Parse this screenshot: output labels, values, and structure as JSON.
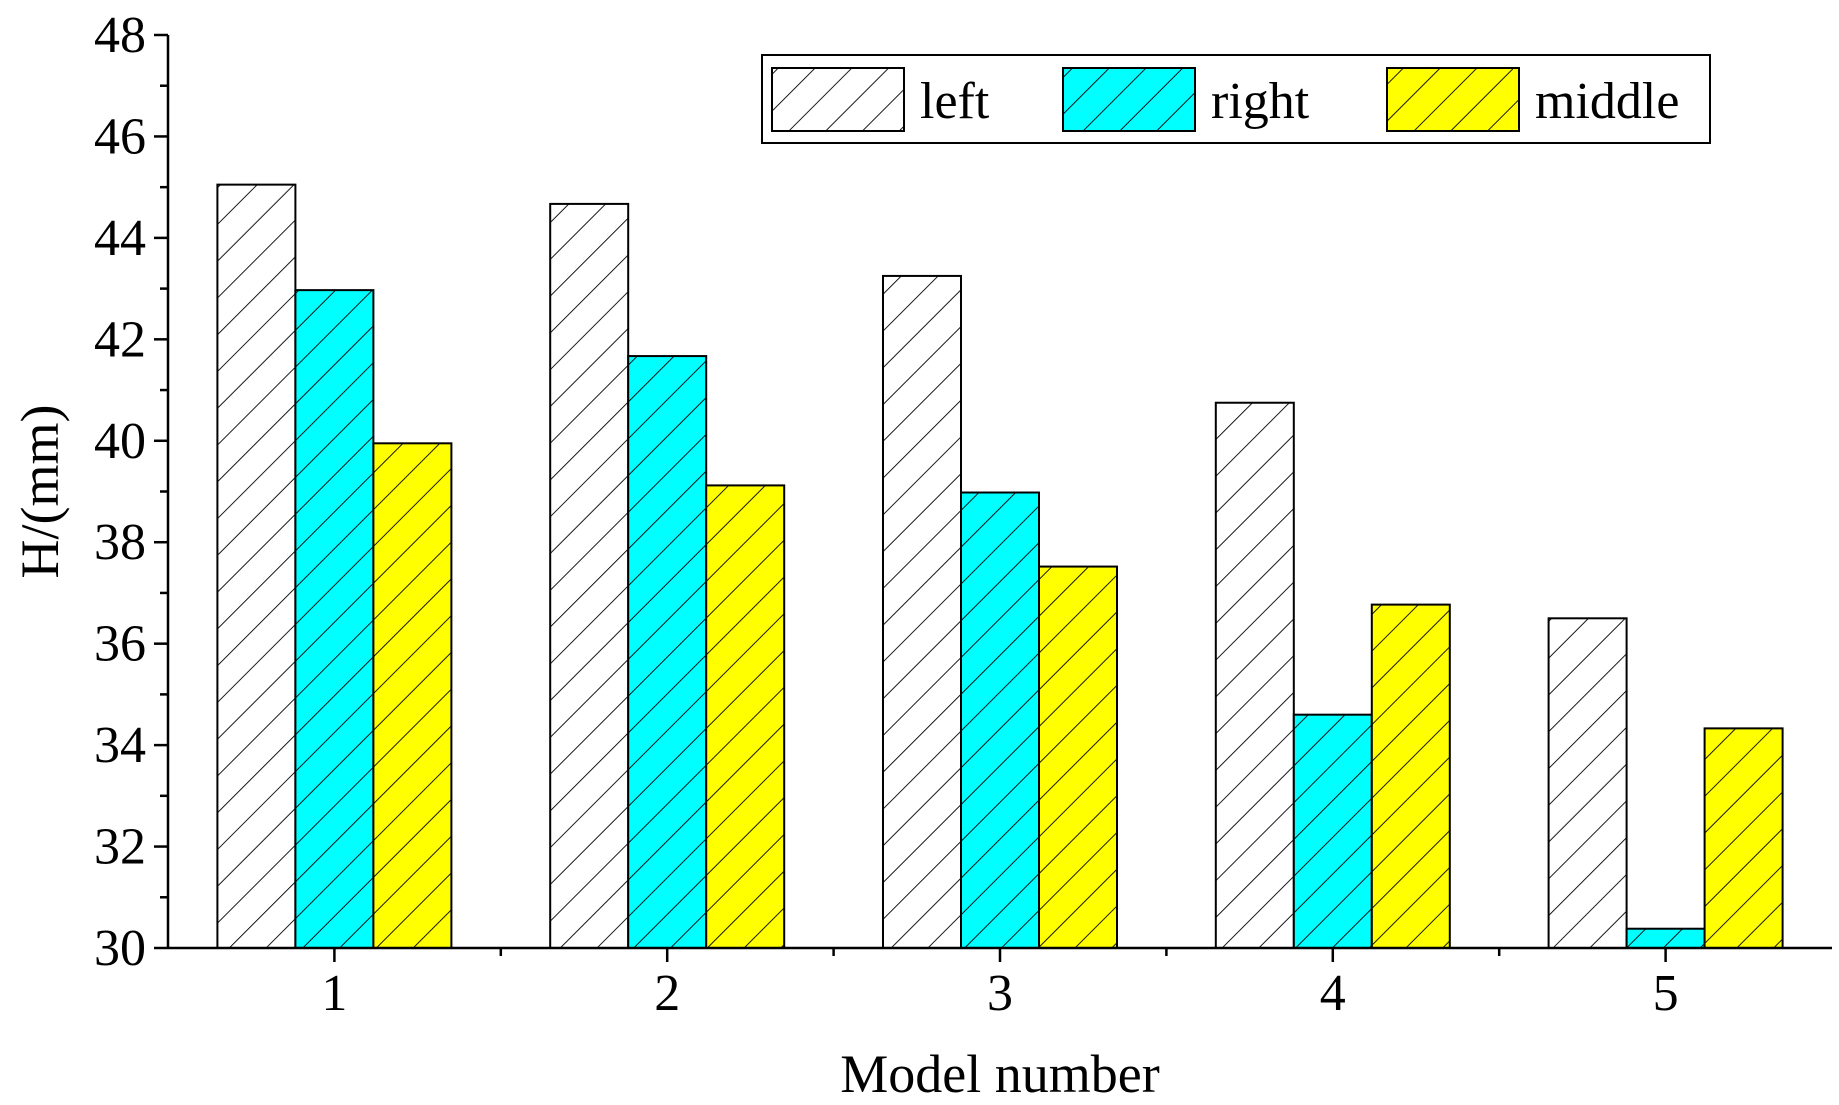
{
  "chart_data": {
    "type": "bar",
    "title": "",
    "xlabel": "Model number",
    "ylabel": "H/(mm)",
    "categories": [
      "1",
      "2",
      "3",
      "4",
      "5"
    ],
    "ylim": [
      30,
      48
    ],
    "yticks": [
      "30",
      "32",
      "34",
      "36",
      "38",
      "40",
      "42",
      "44",
      "46",
      "48"
    ],
    "grid": false,
    "legend_position": "top-right",
    "series": [
      {
        "name": "left",
        "values": [
          45.05,
          44.67,
          43.25,
          40.75,
          36.5
        ],
        "color": "#ffffff",
        "hatch": "diagonal"
      },
      {
        "name": "right",
        "values": [
          42.97,
          41.67,
          38.98,
          34.6,
          30.38
        ],
        "color": "#00ffff",
        "hatch": "diagonal"
      },
      {
        "name": "middle",
        "values": [
          39.95,
          39.12,
          37.52,
          36.77,
          34.33
        ],
        "color": "#ffff00",
        "hatch": "diagonal"
      }
    ]
  }
}
